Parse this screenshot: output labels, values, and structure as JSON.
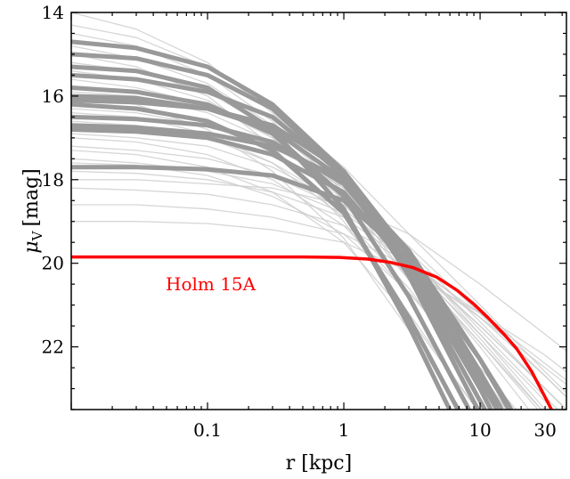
{
  "chart_data": {
    "type": "line",
    "xlabel": "r [kpc]",
    "ylabel_main": "μ",
    "ylabel_sub": "V",
    "ylabel_unit": "[mag]",
    "xscale": "log",
    "xlim": [
      0.01,
      43
    ],
    "ylim": [
      23.5,
      14
    ],
    "y_inverted": true,
    "grid": false,
    "xticks": [
      {
        "value": 0.1,
        "label": "0.1"
      },
      {
        "value": 1,
        "label": "1"
      },
      {
        "value": 10,
        "label": "10"
      },
      {
        "value": 30,
        "label": "30"
      }
    ],
    "yticks": [
      {
        "value": 14,
        "label": "14"
      },
      {
        "value": 16,
        "label": "16"
      },
      {
        "value": 18,
        "label": "18"
      },
      {
        "value": 20,
        "label": "20"
      },
      {
        "value": 22,
        "label": "22"
      }
    ],
    "r_grid": [
      0.01,
      0.03,
      0.1,
      0.3,
      1,
      3,
      10,
      30,
      43
    ],
    "colors": {
      "highlight": "#ff0000",
      "thick": "#999999",
      "thin": "#cccccc"
    },
    "highlight": {
      "name": "Holm 15A",
      "x": [
        0.01,
        0.1,
        0.5,
        0.93,
        1.5,
        2.2,
        3.2,
        4.8,
        6.8,
        9,
        11.4,
        15,
        18.6,
        24,
        30.5,
        34,
        40
      ],
      "y": [
        19.85,
        19.85,
        19.85,
        19.86,
        19.9,
        19.98,
        20.1,
        20.33,
        20.65,
        20.98,
        21.3,
        21.7,
        22.05,
        22.6,
        23.25,
        23.55,
        24.2
      ]
    },
    "thick_series": [
      [
        14.7,
        14.85,
        15.3,
        16.2,
        17.8,
        20.0,
        23.0,
        26,
        27
      ],
      [
        15.0,
        15.1,
        15.5,
        16.3,
        17.9,
        20.3,
        23.6,
        27,
        28
      ],
      [
        15.5,
        15.6,
        15.9,
        16.5,
        17.9,
        20.0,
        22.8,
        25.5,
        26.5
      ],
      [
        16.0,
        16.05,
        16.3,
        16.8,
        18.0,
        20.2,
        23.3,
        26,
        27
      ],
      [
        16.1,
        16.15,
        16.3,
        16.7,
        17.8,
        19.8,
        22.6,
        25.3,
        26.3
      ],
      [
        16.5,
        16.55,
        16.7,
        17.1,
        18.1,
        20.0,
        22.8,
        25.5,
        26.5
      ],
      [
        16.7,
        16.75,
        16.9,
        17.2,
        18.0,
        19.7,
        22.3,
        25,
        26
      ],
      [
        17.7,
        17.7,
        17.75,
        17.9,
        18.5,
        19.9,
        22.3,
        24.8,
        25.6
      ],
      [
        15.3,
        15.4,
        15.8,
        16.8,
        18.7,
        21.5,
        25,
        28,
        29
      ],
      [
        16.2,
        16.3,
        16.6,
        17.3,
        18.8,
        21.3,
        24.5,
        27,
        28
      ],
      [
        15.8,
        15.9,
        16.2,
        16.9,
        18.4,
        20.8,
        24.0,
        27,
        28
      ],
      [
        16.8,
        16.85,
        17.0,
        17.4,
        18.3,
        20.1,
        23.0,
        26,
        27
      ]
    ],
    "thin_series": [
      [
        14.0,
        14.4,
        15.2,
        16.4,
        18.0,
        19.8,
        21.6,
        23.2,
        23.7
      ],
      [
        14.3,
        14.6,
        15.3,
        16.3,
        17.7,
        19.3,
        21.0,
        22.6,
        23.1
      ],
      [
        14.8,
        15.1,
        15.7,
        16.7,
        18.1,
        19.8,
        21.7,
        23.5,
        24.0
      ],
      [
        15.2,
        15.4,
        15.9,
        16.8,
        18.2,
        19.9,
        21.8,
        23.6,
        24.2
      ],
      [
        15.6,
        15.8,
        16.2,
        17.0,
        18.3,
        20.0,
        22.0,
        24.0,
        24.6
      ],
      [
        15.9,
        16.0,
        16.4,
        17.1,
        18.2,
        19.7,
        21.4,
        23.0,
        23.5
      ],
      [
        16.3,
        16.4,
        16.7,
        17.3,
        18.4,
        20.0,
        21.9,
        23.7,
        24.3
      ],
      [
        16.6,
        16.7,
        17.0,
        17.6,
        18.6,
        20.1,
        21.9,
        23.6,
        24.2
      ],
      [
        16.9,
        17.0,
        17.2,
        17.7,
        18.6,
        19.9,
        21.5,
        23.0,
        23.5
      ],
      [
        17.2,
        17.3,
        17.5,
        17.9,
        18.7,
        20.0,
        21.7,
        23.3,
        23.8
      ],
      [
        17.5,
        17.6,
        17.8,
        18.1,
        18.8,
        19.9,
        21.3,
        22.7,
        23.2
      ],
      [
        17.8,
        17.85,
        18.0,
        18.3,
        18.9,
        20.0,
        21.5,
        23.0,
        23.5
      ],
      [
        18.2,
        18.25,
        18.35,
        18.6,
        19.1,
        20.0,
        21.2,
        22.4,
        22.8
      ],
      [
        18.6,
        18.6,
        18.7,
        18.9,
        19.3,
        20.1,
        21.3,
        22.5,
        22.9
      ],
      [
        19.0,
        19.0,
        19.05,
        19.2,
        19.5,
        20.2,
        21.2,
        22.2,
        22.6
      ],
      [
        15.0,
        15.3,
        16.0,
        17.2,
        19.0,
        21.2,
        23.6,
        26,
        27
      ],
      [
        16.0,
        16.2,
        16.8,
        17.8,
        19.4,
        21.6,
        24.2,
        27,
        28
      ],
      [
        16.4,
        16.5,
        16.9,
        17.6,
        18.9,
        20.6,
        22.8,
        25,
        25.6
      ],
      [
        17.0,
        17.1,
        17.4,
        18.0,
        19.1,
        20.7,
        22.7,
        24.7,
        25.3
      ],
      [
        17.6,
        17.65,
        17.9,
        18.4,
        19.3,
        20.7,
        22.5,
        24.3,
        24.8
      ],
      [
        14.5,
        14.8,
        15.5,
        16.6,
        18.3,
        20.4,
        22.8,
        25.2,
        25.9
      ],
      [
        15.4,
        15.6,
        16.1,
        17.0,
        18.5,
        20.4,
        22.6,
        24.8,
        25.4
      ],
      [
        16.2,
        16.3,
        16.6,
        17.2,
        18.2,
        19.6,
        21.2,
        22.7,
        23.2
      ],
      [
        18.0,
        18.0,
        18.1,
        18.2,
        18.6,
        19.3,
        20.5,
        21.7,
        22.1
      ],
      [
        17.3,
        17.4,
        17.7,
        18.3,
        19.5,
        21.3,
        23.6,
        26,
        26.7
      ]
    ]
  }
}
